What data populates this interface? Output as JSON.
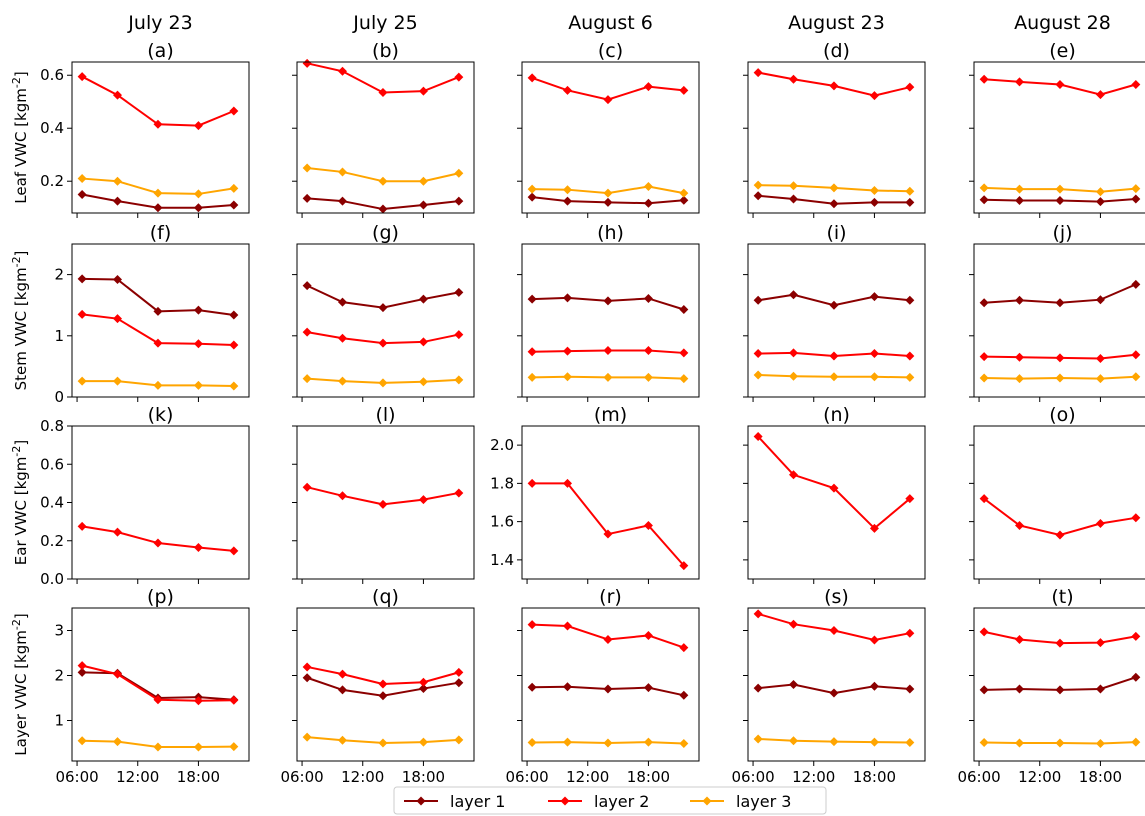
{
  "figure": {
    "columns": [
      "July 23",
      "July 25",
      "August 6",
      "August 23",
      "August 28"
    ],
    "row_labels": [
      "Leaf VWC [kgm$^{-2}$]",
      "Stem VWC [kgm$^{-2}$]",
      "Ear VWC [kgm$^{-2}$]",
      "Layer VWC [kgm$^{-2}$]"
    ],
    "legend": [
      {
        "label": "layer 1",
        "color": "#8b0000"
      },
      {
        "label": "layer 2",
        "color": "#ff0000"
      },
      {
        "label": "layer 3",
        "color": "#ffa500"
      }
    ]
  },
  "chart_data": [
    {
      "type": "line",
      "panel": "(a)",
      "col": 0,
      "row": 0,
      "ylim": [
        0.08,
        0.65
      ],
      "yticks": [
        0.2,
        0.4,
        0.6
      ],
      "ytick_labels": [
        "0.2",
        "0.4",
        "0.6"
      ],
      "x": [
        6.5,
        10,
        14,
        18,
        21.5
      ],
      "series": [
        {
          "name": "layer 1",
          "values": [
            0.15,
            0.125,
            0.1,
            0.1,
            0.11
          ]
        },
        {
          "name": "layer 2",
          "values": [
            0.595,
            0.525,
            0.415,
            0.41,
            0.465
          ]
        },
        {
          "name": "layer 3",
          "values": [
            0.21,
            0.2,
            0.155,
            0.152,
            0.173
          ]
        }
      ]
    },
    {
      "type": "line",
      "panel": "(b)",
      "col": 1,
      "row": 0,
      "ylim": [
        0.08,
        0.65
      ],
      "yticks": [
        0.2,
        0.4,
        0.6
      ],
      "ytick_labels": [],
      "x": [
        6.5,
        10,
        14,
        18,
        21.5
      ],
      "series": [
        {
          "name": "layer 1",
          "values": [
            0.135,
            0.125,
            0.095,
            0.11,
            0.125
          ]
        },
        {
          "name": "layer 2",
          "values": [
            0.645,
            0.615,
            0.535,
            0.54,
            0.593
          ]
        },
        {
          "name": "layer 3",
          "values": [
            0.25,
            0.235,
            0.2,
            0.2,
            0.23
          ]
        }
      ]
    },
    {
      "type": "line",
      "panel": "(c)",
      "col": 2,
      "row": 0,
      "ylim": [
        0.08,
        0.65
      ],
      "yticks": [
        0.2,
        0.4,
        0.6
      ],
      "ytick_labels": [],
      "x": [
        6.5,
        10,
        14,
        18,
        21.5
      ],
      "series": [
        {
          "name": "layer 1",
          "values": [
            0.14,
            0.125,
            0.12,
            0.117,
            0.128
          ]
        },
        {
          "name": "layer 2",
          "values": [
            0.59,
            0.543,
            0.508,
            0.557,
            0.543
          ]
        },
        {
          "name": "layer 3",
          "values": [
            0.17,
            0.168,
            0.155,
            0.18,
            0.155
          ]
        }
      ]
    },
    {
      "type": "line",
      "panel": "(d)",
      "col": 3,
      "row": 0,
      "ylim": [
        0.08,
        0.65
      ],
      "yticks": [
        0.2,
        0.4,
        0.6
      ],
      "ytick_labels": [],
      "x": [
        6.5,
        10,
        14,
        18,
        21.5
      ],
      "series": [
        {
          "name": "layer 1",
          "values": [
            0.145,
            0.133,
            0.115,
            0.12,
            0.12
          ]
        },
        {
          "name": "layer 2",
          "values": [
            0.61,
            0.585,
            0.56,
            0.523,
            0.555
          ]
        },
        {
          "name": "layer 3",
          "values": [
            0.185,
            0.183,
            0.175,
            0.165,
            0.162
          ]
        }
      ]
    },
    {
      "type": "line",
      "panel": "(e)",
      "col": 4,
      "row": 0,
      "ylim": [
        0.08,
        0.65
      ],
      "yticks": [
        0.2,
        0.4,
        0.6
      ],
      "ytick_labels": [],
      "x": [
        6.5,
        10,
        14,
        18,
        21.5
      ],
      "series": [
        {
          "name": "layer 1",
          "values": [
            0.13,
            0.127,
            0.127,
            0.123,
            0.133
          ]
        },
        {
          "name": "layer 2",
          "values": [
            0.585,
            0.575,
            0.565,
            0.527,
            0.565
          ]
        },
        {
          "name": "layer 3",
          "values": [
            0.175,
            0.17,
            0.17,
            0.16,
            0.172
          ]
        }
      ]
    },
    {
      "type": "line",
      "panel": "(f)",
      "col": 0,
      "row": 1,
      "ylim": [
        0,
        2.5
      ],
      "yticks": [
        0,
        1,
        2
      ],
      "ytick_labels": [
        "0",
        "1",
        "2"
      ],
      "x": [
        6.5,
        10,
        14,
        18,
        21.5
      ],
      "series": [
        {
          "name": "layer 1",
          "values": [
            1.93,
            1.92,
            1.4,
            1.42,
            1.34
          ]
        },
        {
          "name": "layer 2",
          "values": [
            1.35,
            1.28,
            0.88,
            0.87,
            0.85
          ]
        },
        {
          "name": "layer 3",
          "values": [
            0.26,
            0.26,
            0.19,
            0.19,
            0.18
          ]
        }
      ]
    },
    {
      "type": "line",
      "panel": "(g)",
      "col": 1,
      "row": 1,
      "ylim": [
        0,
        2.5
      ],
      "yticks": [
        0,
        1,
        2
      ],
      "ytick_labels": [],
      "x": [
        6.5,
        10,
        14,
        18,
        21.5
      ],
      "series": [
        {
          "name": "layer 1",
          "values": [
            1.82,
            1.55,
            1.46,
            1.6,
            1.71
          ]
        },
        {
          "name": "layer 2",
          "values": [
            1.06,
            0.96,
            0.88,
            0.9,
            1.02
          ]
        },
        {
          "name": "layer 3",
          "values": [
            0.3,
            0.26,
            0.23,
            0.25,
            0.28
          ]
        }
      ]
    },
    {
      "type": "line",
      "panel": "(h)",
      "col": 2,
      "row": 1,
      "ylim": [
        0,
        2.5
      ],
      "yticks": [
        0,
        1,
        2
      ],
      "ytick_labels": [],
      "x": [
        6.5,
        10,
        14,
        18,
        21.5
      ],
      "series": [
        {
          "name": "layer 1",
          "values": [
            1.6,
            1.62,
            1.57,
            1.61,
            1.43
          ]
        },
        {
          "name": "layer 2",
          "values": [
            0.74,
            0.75,
            0.76,
            0.76,
            0.72
          ]
        },
        {
          "name": "layer 3",
          "values": [
            0.32,
            0.33,
            0.32,
            0.32,
            0.3
          ]
        }
      ]
    },
    {
      "type": "line",
      "panel": "(i)",
      "col": 3,
      "row": 1,
      "ylim": [
        0,
        2.5
      ],
      "yticks": [
        0,
        1,
        2
      ],
      "ytick_labels": [],
      "x": [
        6.5,
        10,
        14,
        18,
        21.5
      ],
      "series": [
        {
          "name": "layer 1",
          "values": [
            1.58,
            1.67,
            1.5,
            1.64,
            1.58
          ]
        },
        {
          "name": "layer 2",
          "values": [
            0.71,
            0.72,
            0.67,
            0.71,
            0.67
          ]
        },
        {
          "name": "layer 3",
          "values": [
            0.36,
            0.34,
            0.33,
            0.33,
            0.32
          ]
        }
      ]
    },
    {
      "type": "line",
      "panel": "(j)",
      "col": 4,
      "row": 1,
      "ylim": [
        0,
        2.5
      ],
      "yticks": [
        0,
        1,
        2
      ],
      "ytick_labels": [],
      "x": [
        6.5,
        10,
        14,
        18,
        21.5
      ],
      "series": [
        {
          "name": "layer 1",
          "values": [
            1.54,
            1.58,
            1.54,
            1.59,
            1.84
          ]
        },
        {
          "name": "layer 2",
          "values": [
            0.66,
            0.65,
            0.64,
            0.63,
            0.69
          ]
        },
        {
          "name": "layer 3",
          "values": [
            0.31,
            0.3,
            0.31,
            0.3,
            0.33
          ]
        }
      ]
    },
    {
      "type": "line",
      "panel": "(k)",
      "col": 0,
      "row": 2,
      "ylim": [
        0,
        0.8
      ],
      "yticks": [
        0,
        0.2,
        0.4,
        0.6,
        0.8
      ],
      "ytick_labels": [
        "0.0",
        "0.2",
        "0.4",
        "0.6",
        "0.8"
      ],
      "x": [
        6.5,
        10,
        14,
        18,
        21.5
      ],
      "series": [
        {
          "name": "layer 2",
          "values": [
            0.275,
            0.245,
            0.188,
            0.165,
            0.147
          ]
        }
      ]
    },
    {
      "type": "line",
      "panel": "(l)",
      "col": 1,
      "row": 2,
      "ylim": [
        0,
        0.8
      ],
      "yticks": [
        0,
        0.2,
        0.4,
        0.6,
        0.8
      ],
      "ytick_labels": [],
      "x": [
        6.5,
        10,
        14,
        18,
        21.5
      ],
      "series": [
        {
          "name": "layer 2",
          "values": [
            0.48,
            0.435,
            0.39,
            0.415,
            0.45
          ]
        }
      ]
    },
    {
      "type": "line",
      "panel": "(m)",
      "col": 2,
      "row": 2,
      "ylim": [
        1.3,
        2.1
      ],
      "yticks": [
        1.4,
        1.6,
        1.8,
        2.0
      ],
      "ytick_labels": [
        "1.4",
        "1.6",
        "1.8",
        "2.0"
      ],
      "x": [
        6.5,
        10,
        14,
        18,
        21.5
      ],
      "series": [
        {
          "name": "layer 2",
          "values": [
            1.8,
            1.8,
            1.535,
            1.58,
            1.37
          ]
        }
      ]
    },
    {
      "type": "line",
      "panel": "(n)",
      "col": 3,
      "row": 2,
      "ylim": [
        1.3,
        2.1
      ],
      "yticks": [
        1.4,
        1.6,
        1.8,
        2.0
      ],
      "ytick_labels": [],
      "x": [
        6.5,
        10,
        14,
        18,
        21.5
      ],
      "series": [
        {
          "name": "layer 2",
          "values": [
            2.045,
            1.845,
            1.775,
            1.565,
            1.72
          ]
        }
      ]
    },
    {
      "type": "line",
      "panel": "(o)",
      "col": 4,
      "row": 2,
      "ylim": [
        1.3,
        2.1
      ],
      "yticks": [
        1.4,
        1.6,
        1.8,
        2.0
      ],
      "ytick_labels": [],
      "x": [
        6.5,
        10,
        14,
        18,
        21.5
      ],
      "series": [
        {
          "name": "layer 2",
          "values": [
            1.72,
            1.58,
            1.53,
            1.59,
            1.62
          ]
        }
      ]
    },
    {
      "type": "line",
      "panel": "(p)",
      "col": 0,
      "row": 3,
      "ylim": [
        0.1,
        3.5
      ],
      "yticks": [
        1,
        2,
        3
      ],
      "ytick_labels": [
        "1",
        "2",
        "3"
      ],
      "x": [
        6.5,
        10,
        14,
        18,
        21.5
      ],
      "series": [
        {
          "name": "layer 1",
          "values": [
            2.07,
            2.05,
            1.5,
            1.52,
            1.46
          ]
        },
        {
          "name": "layer 2",
          "values": [
            2.22,
            2.03,
            1.46,
            1.44,
            1.45
          ]
        },
        {
          "name": "layer 3",
          "values": [
            0.55,
            0.53,
            0.41,
            0.41,
            0.42
          ]
        }
      ]
    },
    {
      "type": "line",
      "panel": "(q)",
      "col": 1,
      "row": 3,
      "ylim": [
        0.1,
        3.5
      ],
      "yticks": [
        1,
        2,
        3
      ],
      "ytick_labels": [],
      "x": [
        6.5,
        10,
        14,
        18,
        21.5
      ],
      "series": [
        {
          "name": "layer 1",
          "values": [
            1.95,
            1.68,
            1.55,
            1.71,
            1.84
          ]
        },
        {
          "name": "layer 2",
          "values": [
            2.19,
            2.03,
            1.81,
            1.85,
            2.07
          ]
        },
        {
          "name": "layer 3",
          "values": [
            0.63,
            0.56,
            0.5,
            0.52,
            0.57
          ]
        }
      ]
    },
    {
      "type": "line",
      "panel": "(r)",
      "col": 2,
      "row": 3,
      "ylim": [
        0.1,
        3.5
      ],
      "yticks": [
        1,
        2,
        3
      ],
      "ytick_labels": [],
      "x": [
        6.5,
        10,
        14,
        18,
        21.5
      ],
      "series": [
        {
          "name": "layer 1",
          "values": [
            1.74,
            1.75,
            1.7,
            1.73,
            1.56
          ]
        },
        {
          "name": "layer 2",
          "values": [
            3.13,
            3.1,
            2.8,
            2.89,
            2.62
          ]
        },
        {
          "name": "layer 3",
          "values": [
            0.51,
            0.52,
            0.5,
            0.52,
            0.49
          ]
        }
      ]
    },
    {
      "type": "line",
      "panel": "(s)",
      "col": 3,
      "row": 3,
      "ylim": [
        0.1,
        3.5
      ],
      "yticks": [
        1,
        2,
        3
      ],
      "ytick_labels": [],
      "x": [
        6.5,
        10,
        14,
        18,
        21.5
      ],
      "series": [
        {
          "name": "layer 1",
          "values": [
            1.72,
            1.8,
            1.61,
            1.76,
            1.7
          ]
        },
        {
          "name": "layer 2",
          "values": [
            3.37,
            3.14,
            3.0,
            2.79,
            2.94
          ]
        },
        {
          "name": "layer 3",
          "values": [
            0.59,
            0.55,
            0.53,
            0.52,
            0.51
          ]
        }
      ]
    },
    {
      "type": "line",
      "panel": "(t)",
      "col": 4,
      "row": 3,
      "ylim": [
        0.1,
        3.5
      ],
      "yticks": [
        1,
        2,
        3
      ],
      "ytick_labels": [],
      "x": [
        6.5,
        10,
        14,
        18,
        21.5
      ],
      "series": [
        {
          "name": "layer 1",
          "values": [
            1.68,
            1.7,
            1.68,
            1.7,
            1.96
          ]
        },
        {
          "name": "layer 2",
          "values": [
            2.97,
            2.8,
            2.72,
            2.73,
            2.87
          ]
        },
        {
          "name": "layer 3",
          "values": [
            0.51,
            0.5,
            0.5,
            0.49,
            0.52
          ]
        }
      ]
    }
  ],
  "xaxis": {
    "xlim": [
      5.5,
      23
    ],
    "ticks": [
      6,
      12,
      18
    ],
    "tick_labels": [
      "06:00",
      "12:00",
      "18:00"
    ]
  }
}
